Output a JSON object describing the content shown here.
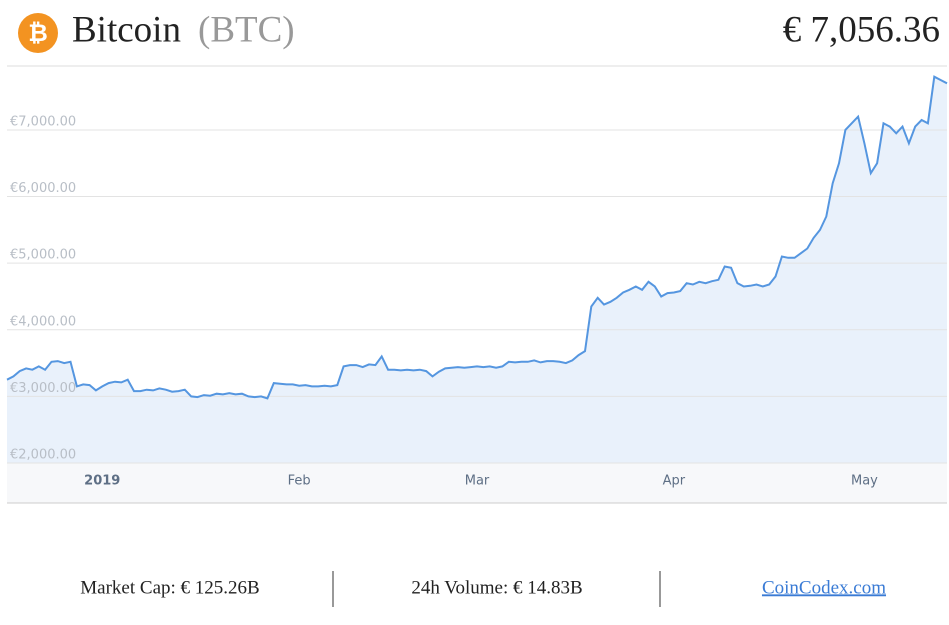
{
  "header": {
    "name": "Bitcoin",
    "symbol": "(BTC)",
    "price": "€ 7,056.36"
  },
  "chart_data": {
    "type": "area",
    "categories": [
      null,
      null,
      null,
      null,
      null,
      null,
      null,
      null,
      null,
      null,
      null,
      null,
      null,
      null,
      null,
      "2019",
      null,
      null,
      null,
      null,
      null,
      null,
      null,
      null,
      null,
      null,
      null,
      null,
      null,
      null,
      null,
      null,
      null,
      null,
      null,
      null,
      null,
      null,
      null,
      null,
      null,
      null,
      null,
      null,
      null,
      null,
      "Feb",
      null,
      null,
      null,
      null,
      null,
      null,
      null,
      null,
      null,
      null,
      null,
      null,
      null,
      null,
      null,
      null,
      null,
      null,
      null,
      null,
      null,
      null,
      null,
      null,
      null,
      null,
      null,
      "Mar",
      null,
      null,
      null,
      null,
      null,
      null,
      null,
      null,
      null,
      null,
      null,
      null,
      null,
      null,
      null,
      null,
      null,
      null,
      null,
      null,
      null,
      null,
      null,
      null,
      null,
      null,
      null,
      null,
      null,
      null,
      "Apr",
      null,
      null,
      null,
      null,
      null,
      null,
      null,
      null,
      null,
      null,
      null,
      null,
      null,
      null,
      null,
      null,
      null,
      null,
      null,
      null,
      null,
      null,
      null,
      null,
      null,
      null,
      null,
      null,
      null,
      "May",
      null,
      null,
      null,
      null,
      null,
      null,
      null,
      null,
      null,
      null,
      null,
      null,
      null
    ],
    "values": [
      3250,
      3300,
      3380,
      3420,
      3400,
      3450,
      3400,
      3520,
      3530,
      3500,
      3520,
      3150,
      3180,
      3170,
      3090,
      3150,
      3200,
      3220,
      3210,
      3250,
      3080,
      3080,
      3100,
      3090,
      3120,
      3100,
      3070,
      3080,
      3100,
      3000,
      2990,
      3020,
      3010,
      3040,
      3030,
      3050,
      3030,
      3040,
      3000,
      2990,
      3000,
      2970,
      3200,
      3190,
      3180,
      3180,
      3160,
      3170,
      3150,
      3150,
      3160,
      3150,
      3170,
      3450,
      3470,
      3470,
      3440,
      3480,
      3470,
      3600,
      3400,
      3400,
      3390,
      3400,
      3390,
      3400,
      3380,
      3300,
      3370,
      3420,
      3430,
      3440,
      3430,
      3440,
      3450,
      3440,
      3450,
      3430,
      3450,
      3520,
      3510,
      3520,
      3520,
      3540,
      3510,
      3530,
      3530,
      3520,
      3500,
      3540,
      3620,
      3680,
      4350,
      4480,
      4380,
      4420,
      4480,
      4560,
      4600,
      4650,
      4600,
      4720,
      4650,
      4500,
      4550,
      4560,
      4580,
      4700,
      4680,
      4720,
      4700,
      4730,
      4750,
      4950,
      4930,
      4700,
      4650,
      4660,
      4680,
      4650,
      4680,
      4800,
      5100,
      5080,
      5080,
      5150,
      5220,
      5380,
      5500,
      5700,
      6200,
      6500,
      7000,
      7100,
      7200,
      6800,
      6350,
      6500,
      7100,
      7050,
      6950,
      7050,
      6800,
      7050,
      7150,
      7100,
      7800,
      7750,
      7700
    ],
    "color": "#5596e0",
    "ylim": [
      2000,
      7960
    ],
    "yticks": [
      {
        "value": 2000,
        "label": "€2,000.00"
      },
      {
        "value": 3000,
        "label": "€3,000.00"
      },
      {
        "value": 4000,
        "label": "€4,000.00"
      },
      {
        "value": 5000,
        "label": "€5,000.00"
      },
      {
        "value": 6000,
        "label": "€6,000.00"
      },
      {
        "value": 7000,
        "label": "€7,000.00"
      }
    ],
    "grid": true
  },
  "footer": {
    "market_cap": "Market Cap: € 125.26B",
    "volume": "24h Volume: € 14.83B",
    "link": "CoinCodex.com"
  }
}
